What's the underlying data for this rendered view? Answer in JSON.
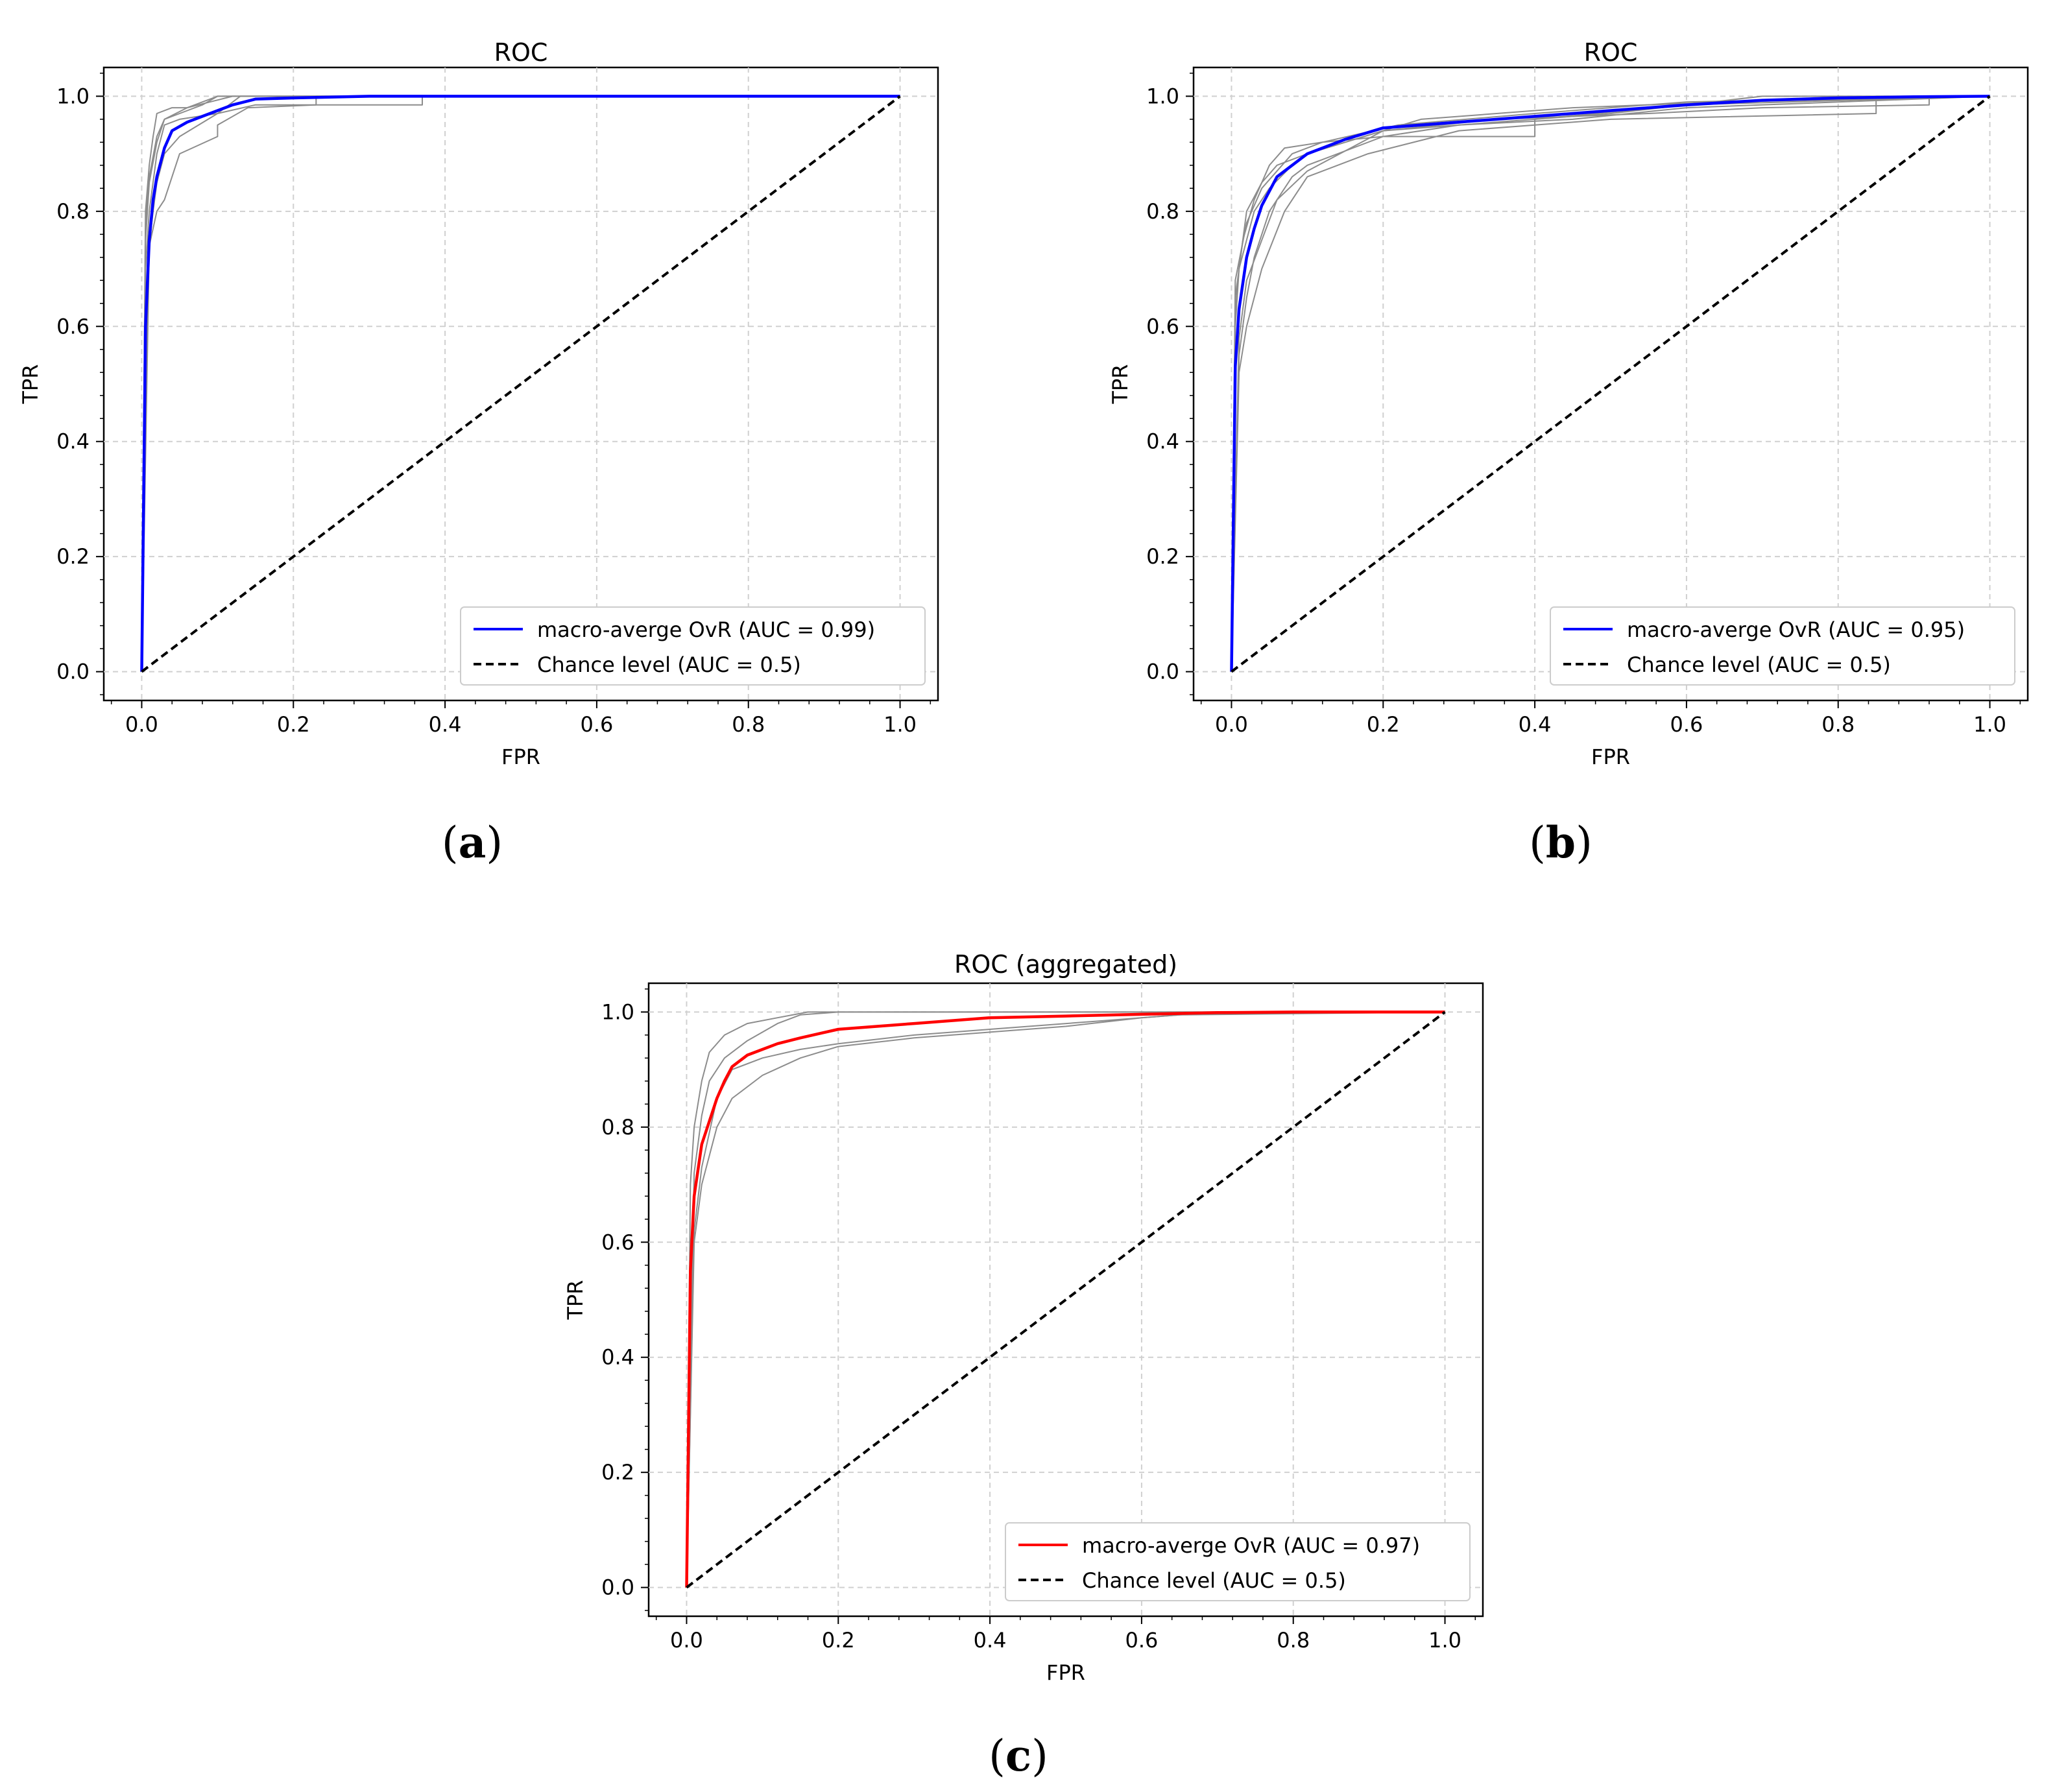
{
  "chart_data": [
    {
      "type": "line",
      "title": "ROC",
      "xlabel": "FPR",
      "ylabel": "TPR",
      "xlim": [
        -0.05,
        1.05
      ],
      "ylim": [
        -0.05,
        1.05
      ],
      "xticks": [
        "0.0",
        "0.2",
        "0.4",
        "0.6",
        "0.8",
        "1.0"
      ],
      "yticks": [
        "0.0",
        "0.2",
        "0.4",
        "0.6",
        "0.8",
        "1.0"
      ],
      "grid": true,
      "legend_position": "lower-right",
      "caption": "(a)",
      "caption_letter": "a",
      "series": [
        {
          "name": "macro-averge OvR (AUC = 0.99)",
          "color": "#0000ff",
          "style": "solid",
          "x": [
            0,
            0.005,
            0.01,
            0.015,
            0.02,
            0.03,
            0.04,
            0.06,
            0.08,
            0.1,
            0.12,
            0.15,
            0.2,
            0.3,
            0.5,
            1.0
          ],
          "y": [
            0,
            0.6,
            0.75,
            0.82,
            0.86,
            0.91,
            0.94,
            0.955,
            0.965,
            0.975,
            0.985,
            0.995,
            0.997,
            1.0,
            1.0,
            1.0
          ]
        },
        {
          "name": "Chance level (AUC = 0.5)",
          "color": "#000000",
          "style": "dashed",
          "x": [
            0,
            1
          ],
          "y": [
            0,
            1
          ]
        }
      ],
      "background_series": [
        {
          "x": [
            0,
            0.005,
            0.01,
            0.02,
            0.03,
            0.05,
            0.08,
            0.1,
            0.15,
            1.0
          ],
          "y": [
            0,
            0.75,
            0.85,
            0.92,
            0.96,
            0.97,
            0.985,
            1.0,
            1.0,
            1.0
          ]
        },
        {
          "x": [
            0,
            0.005,
            0.01,
            0.02,
            0.03,
            0.05,
            0.1,
            0.13,
            1.0
          ],
          "y": [
            0,
            0.7,
            0.8,
            0.9,
            0.95,
            0.96,
            0.97,
            1.0,
            1.0
          ]
        },
        {
          "x": [
            0,
            0.008,
            0.015,
            0.02,
            0.03,
            0.05,
            0.1,
            0.15,
            0.37,
            0.37,
            1.0
          ],
          "y": [
            0,
            0.72,
            0.8,
            0.85,
            0.9,
            0.93,
            0.97,
            0.985,
            0.985,
            1.0,
            1.0
          ]
        },
        {
          "x": [
            0,
            0.005,
            0.01,
            0.015,
            0.02,
            0.04,
            0.06,
            0.09,
            0.12,
            1.0
          ],
          "y": [
            0,
            0.8,
            0.88,
            0.93,
            0.97,
            0.98,
            0.98,
            0.99,
            1.0,
            1.0
          ]
        },
        {
          "x": [
            0,
            0.01,
            0.02,
            0.03,
            0.05,
            0.1,
            0.1,
            0.14,
            0.23,
            0.23,
            1.0
          ],
          "y": [
            0,
            0.74,
            0.8,
            0.82,
            0.9,
            0.93,
            0.95,
            0.98,
            0.985,
            1.0,
            1.0
          ]
        },
        {
          "x": [
            0,
            0.005,
            0.01,
            0.02,
            0.03,
            0.06,
            0.1,
            0.14,
            1.0
          ],
          "y": [
            0,
            0.78,
            0.86,
            0.93,
            0.96,
            0.98,
            1.0,
            1.0,
            1.0
          ]
        }
      ]
    },
    {
      "type": "line",
      "title": "ROC",
      "xlabel": "FPR",
      "ylabel": "TPR",
      "xlim": [
        -0.05,
        1.05
      ],
      "ylim": [
        -0.05,
        1.05
      ],
      "xticks": [
        "0.0",
        "0.2",
        "0.4",
        "0.6",
        "0.8",
        "1.0"
      ],
      "yticks": [
        "0.0",
        "0.2",
        "0.4",
        "0.6",
        "0.8",
        "1.0"
      ],
      "grid": true,
      "legend_position": "lower-right",
      "caption": "(b)",
      "caption_letter": "b",
      "series": [
        {
          "name": "macro-averge OvR (AUC = 0.95)",
          "color": "#0000ff",
          "style": "solid",
          "x": [
            0,
            0.005,
            0.01,
            0.02,
            0.03,
            0.04,
            0.06,
            0.08,
            0.1,
            0.15,
            0.2,
            0.3,
            0.4,
            0.5,
            0.6,
            0.7,
            0.8,
            0.9,
            1.0
          ],
          "y": [
            0,
            0.53,
            0.63,
            0.72,
            0.77,
            0.81,
            0.86,
            0.88,
            0.9,
            0.925,
            0.945,
            0.955,
            0.965,
            0.975,
            0.985,
            0.993,
            0.997,
            0.999,
            1.0
          ]
        },
        {
          "name": "Chance level (AUC = 0.5)",
          "color": "#000000",
          "style": "dashed",
          "x": [
            0,
            1
          ],
          "y": [
            0,
            1
          ]
        }
      ],
      "background_series": [
        {
          "x": [
            0,
            0.005,
            0.01,
            0.02,
            0.04,
            0.06,
            0.1,
            0.15,
            0.2,
            0.3,
            0.5,
            0.7,
            1.0
          ],
          "y": [
            0,
            0.6,
            0.7,
            0.8,
            0.85,
            0.88,
            0.9,
            0.92,
            0.94,
            0.95,
            0.97,
            1.0,
            1.0
          ]
        },
        {
          "x": [
            0,
            0.01,
            0.02,
            0.03,
            0.05,
            0.08,
            0.1,
            0.2,
            0.3,
            0.45,
            0.6,
            1.0
          ],
          "y": [
            0,
            0.55,
            0.65,
            0.72,
            0.8,
            0.86,
            0.88,
            0.93,
            0.95,
            0.96,
            0.98,
            1.0
          ]
        },
        {
          "x": [
            0,
            0.005,
            0.015,
            0.03,
            0.05,
            0.07,
            0.12,
            0.2,
            0.4,
            0.4,
            0.6,
            1.0
          ],
          "y": [
            0,
            0.65,
            0.75,
            0.82,
            0.88,
            0.91,
            0.92,
            0.93,
            0.93,
            0.96,
            0.985,
            1.0
          ]
        },
        {
          "x": [
            0,
            0.01,
            0.02,
            0.04,
            0.06,
            0.1,
            0.2,
            0.35,
            0.55,
            0.7,
            0.92,
            0.92,
            1.0
          ],
          "y": [
            0,
            0.58,
            0.68,
            0.75,
            0.82,
            0.87,
            0.94,
            0.96,
            0.97,
            0.98,
            0.985,
            1.0,
            1.0
          ]
        },
        {
          "x": [
            0,
            0.005,
            0.01,
            0.03,
            0.05,
            0.08,
            0.1,
            0.15,
            0.25,
            0.45,
            0.65,
            1.0
          ],
          "y": [
            0,
            0.62,
            0.7,
            0.8,
            0.84,
            0.88,
            0.9,
            0.92,
            0.96,
            0.98,
            0.99,
            1.0
          ]
        },
        {
          "x": [
            0,
            0.01,
            0.02,
            0.04,
            0.07,
            0.1,
            0.18,
            0.3,
            0.5,
            0.85,
            0.85,
            1.0
          ],
          "y": [
            0,
            0.52,
            0.6,
            0.7,
            0.8,
            0.86,
            0.9,
            0.94,
            0.96,
            0.97,
            1.0,
            1.0
          ]
        },
        {
          "x": [
            0,
            0.005,
            0.02,
            0.04,
            0.08,
            0.12,
            0.22,
            0.4,
            0.6,
            0.95,
            1.0
          ],
          "y": [
            0,
            0.68,
            0.78,
            0.84,
            0.9,
            0.92,
            0.95,
            0.97,
            0.99,
            1.0,
            1.0
          ]
        }
      ]
    },
    {
      "type": "line",
      "title": "ROC (aggregated)",
      "xlabel": "FPR",
      "ylabel": "TPR",
      "xlim": [
        -0.05,
        1.05
      ],
      "ylim": [
        -0.05,
        1.05
      ],
      "xticks": [
        "0.0",
        "0.2",
        "0.4",
        "0.6",
        "0.8",
        "1.0"
      ],
      "yticks": [
        "0.0",
        "0.2",
        "0.4",
        "0.6",
        "0.8",
        "1.0"
      ],
      "grid": true,
      "legend_position": "lower-right",
      "caption": "(c)",
      "caption_letter": "c",
      "series": [
        {
          "name": "macro-averge OvR (AUC = 0.97)",
          "color": "#ff0000",
          "style": "solid",
          "x": [
            0,
            0.005,
            0.01,
            0.02,
            0.03,
            0.04,
            0.05,
            0.06,
            0.08,
            0.1,
            0.12,
            0.15,
            0.2,
            0.3,
            0.4,
            0.5,
            0.6,
            0.7,
            0.8,
            1.0
          ],
          "y": [
            0,
            0.55,
            0.68,
            0.77,
            0.81,
            0.85,
            0.88,
            0.905,
            0.925,
            0.935,
            0.945,
            0.955,
            0.97,
            0.98,
            0.99,
            0.993,
            0.996,
            0.999,
            1.0,
            1.0
          ]
        },
        {
          "name": "Chance level (AUC = 0.5)",
          "color": "#000000",
          "style": "dashed",
          "x": [
            0,
            1
          ],
          "y": [
            0,
            1
          ]
        }
      ],
      "background_series": [
        {
          "x": [
            0,
            0.005,
            0.01,
            0.02,
            0.03,
            0.05,
            0.08,
            0.12,
            0.16,
            0.25,
            1.0
          ],
          "y": [
            0,
            0.7,
            0.8,
            0.88,
            0.93,
            0.96,
            0.98,
            0.99,
            1.0,
            1.0,
            1.0
          ]
        },
        {
          "x": [
            0,
            0.01,
            0.02,
            0.03,
            0.05,
            0.08,
            0.12,
            0.15,
            0.2,
            0.3,
            1.0
          ],
          "y": [
            0,
            0.72,
            0.82,
            0.88,
            0.92,
            0.95,
            0.98,
            0.995,
            1.0,
            1.0,
            1.0
          ]
        },
        {
          "x": [
            0,
            0.01,
            0.02,
            0.04,
            0.06,
            0.1,
            0.15,
            0.2,
            0.3,
            0.4,
            0.5,
            0.6,
            0.7,
            1.0
          ],
          "y": [
            0,
            0.6,
            0.7,
            0.8,
            0.85,
            0.89,
            0.92,
            0.94,
            0.955,
            0.965,
            0.975,
            0.99,
            1.0,
            1.0
          ]
        },
        {
          "x": [
            0,
            0.01,
            0.02,
            0.04,
            0.06,
            0.1,
            0.15,
            0.2,
            0.3,
            0.4,
            0.55,
            0.65,
            1.0
          ],
          "y": [
            0,
            0.62,
            0.73,
            0.85,
            0.9,
            0.92,
            0.935,
            0.945,
            0.96,
            0.97,
            0.985,
            0.995,
            1.0
          ]
        }
      ]
    }
  ]
}
